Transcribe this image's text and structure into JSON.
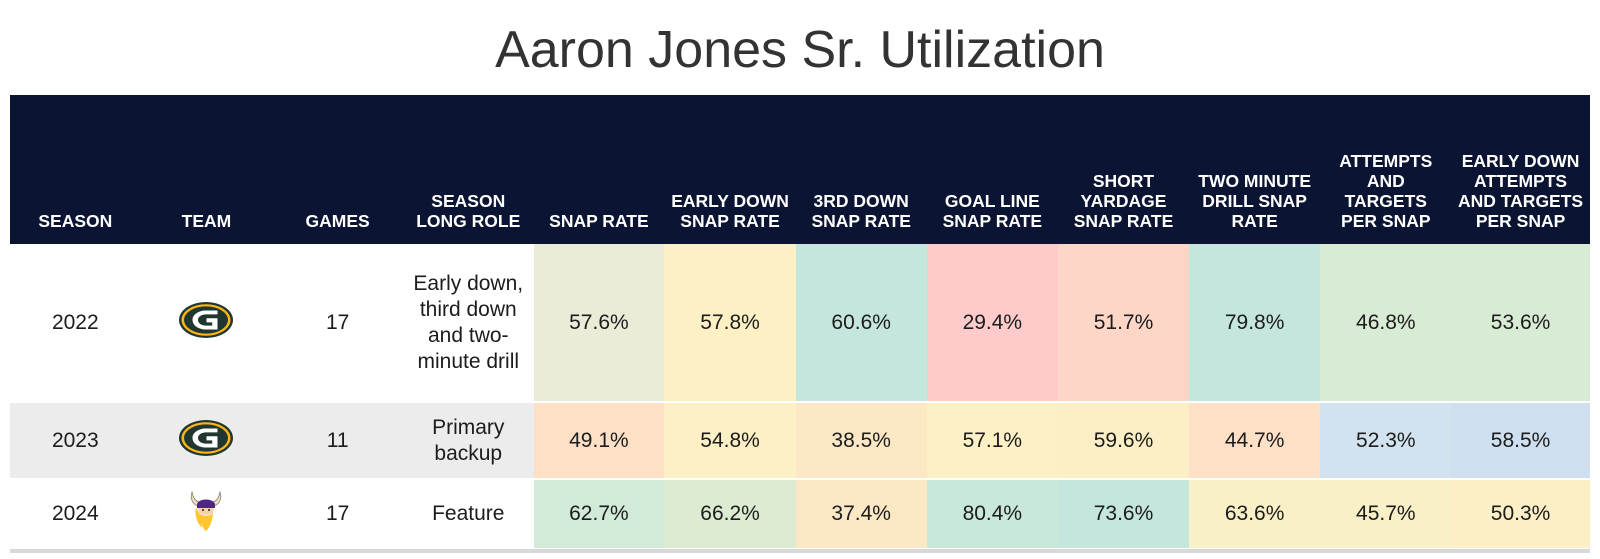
{
  "title": "Aaron Jones Sr. Utilization",
  "headers": [
    "SEASON",
    "TEAM",
    "GAMES",
    "SEASON LONG ROLE",
    "SNAP RATE",
    "EARLY DOWN SNAP RATE",
    "3RD DOWN SNAP RATE",
    "GOAL LINE SNAP RATE",
    "SHORT YARDAGE SNAP RATE",
    "TWO MINUTE DRILL SNAP RATE",
    "ATTEMPTS AND TARGETS PER SNAP",
    "EARLY DOWN ATTEMPTS AND TARGETS PER SNAP"
  ],
  "rows": [
    {
      "season": "2022",
      "team_icon": "packers-logo-icon",
      "games": "17",
      "role": "Early down, third down and two-minute drill",
      "metrics": [
        "57.6%",
        "57.8%",
        "60.6%",
        "29.4%",
        "51.7%",
        "79.8%",
        "46.8%",
        "53.6%"
      ],
      "colors": [
        "#ebebd8",
        "#fdf0c5",
        "#c4e6dd",
        "#fecaca",
        "#fdd6c7",
        "#c4e6dd",
        "#d8ebd4",
        "#d8ebd4"
      ]
    },
    {
      "season": "2023",
      "team_icon": "packers-logo-icon",
      "games": "11",
      "role": "Primary backup",
      "metrics": [
        "49.1%",
        "54.8%",
        "38.5%",
        "57.1%",
        "59.6%",
        "44.7%",
        "52.3%",
        "58.5%"
      ],
      "colors": [
        "#fde0c5",
        "#fdf0c5",
        "#fde8c5",
        "#fdf0c5",
        "#fdefc5",
        "#fde0c5",
        "#d3e2ef",
        "#cedfef"
      ]
    },
    {
      "season": "2024",
      "team_icon": "vikings-logo-icon",
      "games": "17",
      "role": "Feature",
      "metrics": [
        "62.7%",
        "66.2%",
        "37.4%",
        "80.4%",
        "73.6%",
        "63.6%",
        "45.7%",
        "50.3%"
      ],
      "colors": [
        "#d2ead8",
        "#dbecd3",
        "#fde8c5",
        "#c8e8d9",
        "#c4e6dd",
        "#f9f0c8",
        "#f9f0c8",
        "#fdefc5"
      ]
    }
  ],
  "chart_data": {
    "type": "table",
    "title": "Aaron Jones Sr. Utilization",
    "columns": [
      "SEASON",
      "TEAM",
      "GAMES",
      "SEASON LONG ROLE",
      "SNAP RATE",
      "EARLY DOWN SNAP RATE",
      "3RD DOWN SNAP RATE",
      "GOAL LINE SNAP RATE",
      "SHORT YARDAGE SNAP RATE",
      "TWO MINUTE DRILL SNAP RATE",
      "ATTEMPTS AND TARGETS PER SNAP",
      "EARLY DOWN ATTEMPTS AND TARGETS PER SNAP"
    ],
    "rows": [
      [
        "2022",
        "Packers",
        17,
        "Early down, third down and two-minute drill",
        57.6,
        57.8,
        60.6,
        29.4,
        51.7,
        79.8,
        46.8,
        53.6
      ],
      [
        "2023",
        "Packers",
        11,
        "Primary backup",
        49.1,
        54.8,
        38.5,
        57.1,
        59.6,
        44.7,
        52.3,
        58.5
      ],
      [
        "2024",
        "Vikings",
        17,
        "Feature",
        62.7,
        66.2,
        37.4,
        80.4,
        73.6,
        63.6,
        45.7,
        50.3
      ]
    ]
  }
}
